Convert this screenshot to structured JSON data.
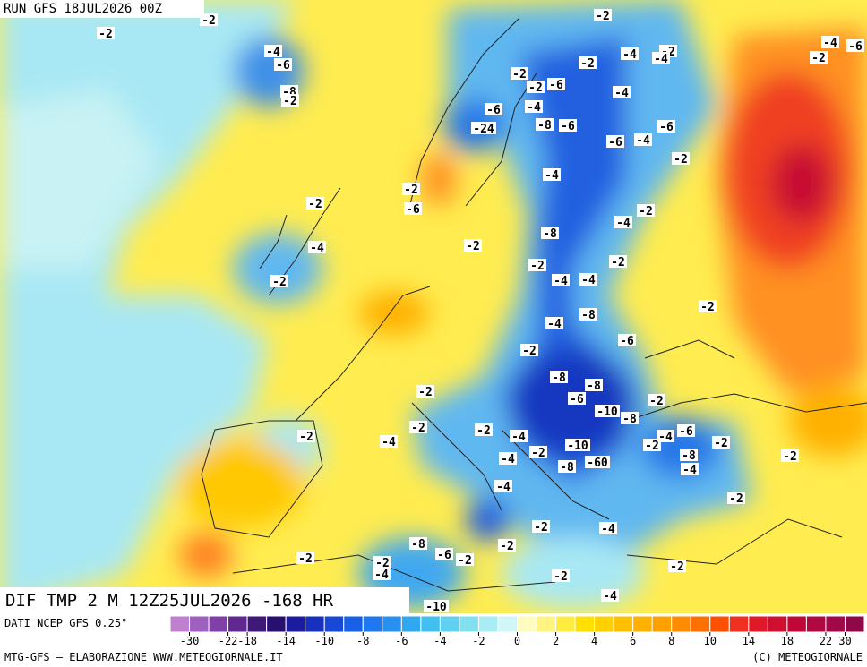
{
  "header": {
    "run": "RUN GFS 18JUL2026 00Z",
    "field": "DIF TMP 2 M 12Z25JUL2026 -168 HR"
  },
  "contour_labels": [
    -2,
    -2,
    -4,
    -6,
    -8,
    -2,
    -2,
    -2,
    -4,
    -4,
    -2,
    -4,
    -6,
    -2,
    -2,
    -2,
    -6,
    -4,
    -4,
    -6,
    -24,
    -8,
    -6,
    -6,
    -6,
    -4,
    -2,
    -4,
    -2,
    -2,
    -6,
    -4,
    -2,
    -8,
    -2,
    -4,
    -2,
    -2,
    -2,
    -4,
    -4,
    -2,
    -8,
    -4,
    -6,
    -2,
    -8,
    -8,
    -6,
    -2,
    -2,
    -10,
    -8,
    -2,
    -6,
    -4,
    -2,
    -2,
    -2,
    -4,
    -2,
    -4,
    -10,
    -2,
    -8,
    -4,
    -4,
    -8,
    -60,
    -2,
    -4,
    -2,
    -2,
    -4,
    -8,
    -6,
    -2,
    -2,
    -2,
    -2,
    -4,
    -2,
    -2,
    -4,
    -10
  ],
  "colorbar": {
    "source": "DATI NCEP GFS 0.25°",
    "colors": [
      "#c080d0",
      "#a060c0",
      "#8040a8",
      "#602890",
      "#401878",
      "#281070",
      "#1c1ca0",
      "#1830c0",
      "#1848d8",
      "#1860e8",
      "#2078f0",
      "#2890f0",
      "#30a8f0",
      "#40c0f0",
      "#60d0f0",
      "#80e0f0",
      "#a8ecf4",
      "#d0f6f8",
      "#fffcc0",
      "#fff480",
      "#ffec40",
      "#ffe000",
      "#ffd000",
      "#ffc000",
      "#ffb000",
      "#ffa000",
      "#ff8c00",
      "#ff7000",
      "#ff5000",
      "#f03020",
      "#e01828",
      "#d01030",
      "#c00838",
      "#b00840",
      "#a00848",
      "#900848"
    ],
    "ticks": [
      -30,
      -22,
      -18,
      -14,
      -10,
      -8,
      -6,
      -4,
      -2,
      0,
      2,
      4,
      6,
      8,
      10,
      14,
      18,
      22,
      30
    ]
  },
  "footer": {
    "left": "MTG-GFS — ELABORAZIONE WWW.METEOGIORNALE.IT",
    "right": "(C) METEOGIORNALE"
  }
}
